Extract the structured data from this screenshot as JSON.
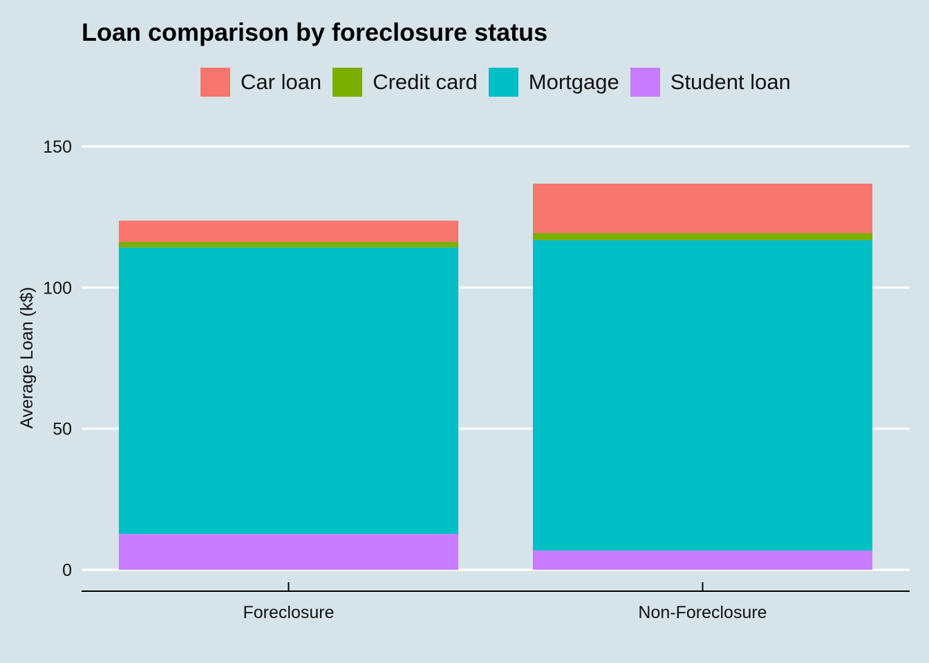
{
  "chart_data": {
    "type": "bar",
    "stacked": true,
    "title": "Loan comparison by foreclosure status",
    "xlabel": "",
    "ylabel": "Average Loan (k$)",
    "ylim": [
      0,
      150
    ],
    "yticks": [
      0,
      50,
      100,
      150
    ],
    "grid": "horizontal",
    "legend_position": "top",
    "categories": [
      "Foreclosure",
      "Non-Foreclosure"
    ],
    "series": [
      {
        "name": "Car loan",
        "color": "#f8766d",
        "values": [
          7.5,
          17.5
        ]
      },
      {
        "name": "Credit card",
        "color": "#7cae00",
        "values": [
          2.0,
          2.5
        ]
      },
      {
        "name": "Mortgage",
        "color": "#00bfc4",
        "values": [
          101.5,
          110.0
        ]
      },
      {
        "name": "Student loan",
        "color": "#c77cff",
        "values": [
          12.7,
          6.8
        ]
      }
    ]
  }
}
